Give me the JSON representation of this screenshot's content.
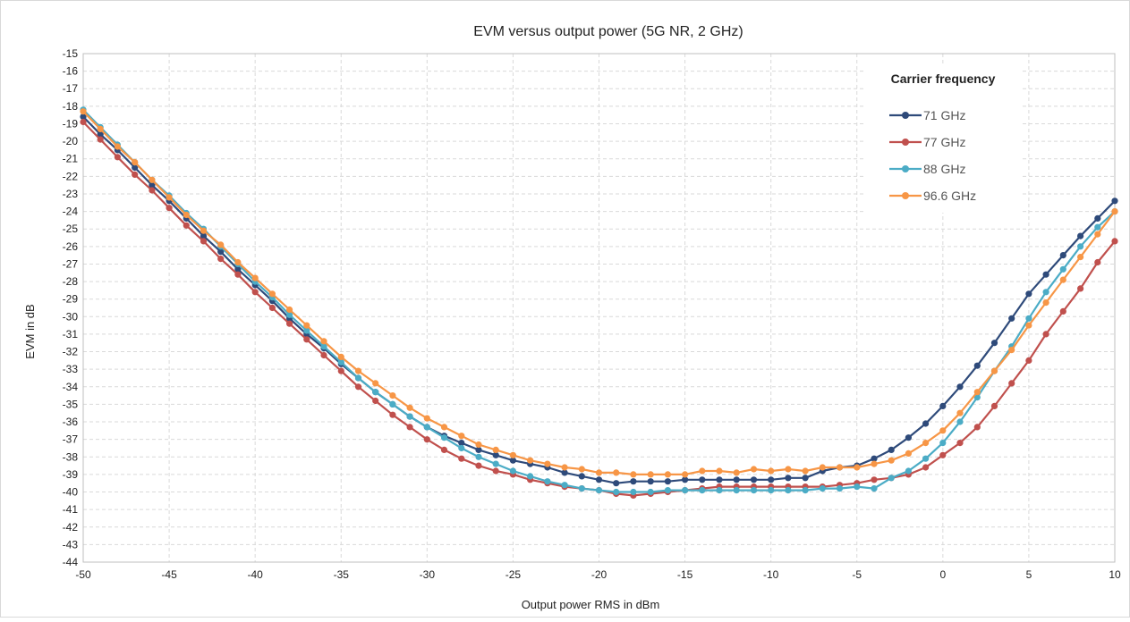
{
  "chart_data": {
    "type": "line",
    "title": "EVM versus output power (5G NR, 2 GHz)",
    "xlabel": "Output power RMS in dBm",
    "ylabel": "EVM in dB",
    "xlim": [
      -50,
      10
    ],
    "ylim": [
      -44,
      -15
    ],
    "x_ticks": [
      -50,
      -45,
      -40,
      -35,
      -30,
      -25,
      -20,
      -15,
      -10,
      -5,
      0,
      5,
      10
    ],
    "y_ticks": [
      -15,
      -16,
      -17,
      -18,
      -19,
      -20,
      -21,
      -22,
      -23,
      -24,
      -25,
      -26,
      -27,
      -28,
      -29,
      -30,
      -31,
      -32,
      -33,
      -34,
      -35,
      -36,
      -37,
      -38,
      -39,
      -40,
      -41,
      -42,
      -43,
      -44
    ],
    "grid": "dashed",
    "legend": {
      "title": "Carrier frequency",
      "position": "top-right"
    },
    "x": [
      -50,
      -49,
      -48,
      -47,
      -46,
      -45,
      -44,
      -43,
      -42,
      -41,
      -40,
      -39,
      -38,
      -37,
      -36,
      -35,
      -34,
      -33,
      -32,
      -31,
      -30,
      -29,
      -28,
      -27,
      -26,
      -25,
      -24,
      -23,
      -22,
      -21,
      -20,
      -19,
      -18,
      -17,
      -16,
      -15,
      -14,
      -13,
      -12,
      -11,
      -10,
      -9,
      -8,
      -7,
      -6,
      -5,
      -4,
      -3,
      -2,
      -1,
      0,
      1,
      2,
      3,
      4,
      5,
      6,
      7,
      8,
      9,
      10
    ],
    "series": [
      {
        "name": "71 GHz",
        "color": "#2e4a7a",
        "values": [
          -18.6,
          -19.6,
          -20.5,
          -21.5,
          -22.5,
          -23.4,
          -24.4,
          -25.4,
          -26.3,
          -27.3,
          -28.2,
          -29.1,
          -30.1,
          -31.0,
          -31.8,
          -32.7,
          -33.5,
          -34.3,
          -35.0,
          -35.7,
          -36.3,
          -36.8,
          -37.2,
          -37.6,
          -37.9,
          -38.2,
          -38.4,
          -38.6,
          -38.9,
          -39.1,
          -39.3,
          -39.5,
          -39.4,
          -39.4,
          -39.4,
          -39.3,
          -39.3,
          -39.3,
          -39.3,
          -39.3,
          -39.3,
          -39.2,
          -39.2,
          -38.8,
          -38.6,
          -38.5,
          -38.1,
          -37.6,
          -36.9,
          -36.1,
          -35.1,
          -34.0,
          -32.8,
          -31.5,
          -30.1,
          -28.7,
          -27.6,
          -26.5,
          -25.4,
          -24.4,
          -23.4
        ]
      },
      {
        "name": "77 GHz",
        "color": "#c0504d",
        "values": [
          -18.9,
          -19.9,
          -20.9,
          -21.9,
          -22.8,
          -23.8,
          -24.8,
          -25.7,
          -26.7,
          -27.6,
          -28.6,
          -29.5,
          -30.4,
          -31.3,
          -32.2,
          -33.1,
          -34.0,
          -34.8,
          -35.6,
          -36.3,
          -37.0,
          -37.6,
          -38.1,
          -38.5,
          -38.8,
          -39.0,
          -39.3,
          -39.5,
          -39.7,
          -39.8,
          -39.9,
          -40.1,
          -40.2,
          -40.1,
          -40.0,
          -39.9,
          -39.8,
          -39.7,
          -39.7,
          -39.7,
          -39.7,
          -39.7,
          -39.7,
          -39.7,
          -39.6,
          -39.5,
          -39.3,
          -39.2,
          -39.0,
          -38.6,
          -37.9,
          -37.2,
          -36.3,
          -35.1,
          -33.8,
          -32.5,
          -31.0,
          -29.7,
          -28.4,
          -26.9,
          -25.7
        ]
      },
      {
        "name": "88 GHz",
        "color": "#4bacc6",
        "values": [
          -18.2,
          -19.2,
          -20.2,
          -21.2,
          -22.2,
          -23.1,
          -24.1,
          -25.0,
          -26.0,
          -27.0,
          -28.0,
          -28.9,
          -29.9,
          -30.8,
          -31.7,
          -32.6,
          -33.5,
          -34.3,
          -35.0,
          -35.7,
          -36.3,
          -36.9,
          -37.5,
          -38.0,
          -38.4,
          -38.8,
          -39.1,
          -39.4,
          -39.6,
          -39.8,
          -39.9,
          -40.0,
          -40.0,
          -40.0,
          -39.9,
          -39.9,
          -39.9,
          -39.9,
          -39.9,
          -39.9,
          -39.9,
          -39.9,
          -39.9,
          -39.8,
          -39.8,
          -39.7,
          -39.8,
          -39.2,
          -38.8,
          -38.1,
          -37.2,
          -36.0,
          -34.6,
          -33.1,
          -31.7,
          -30.1,
          -28.6,
          -27.3,
          -26.0,
          -24.9,
          -24.0
        ]
      },
      {
        "name": "96.6 GHz",
        "color": "#f79646",
        "values": [
          -18.3,
          -19.3,
          -20.3,
          -21.2,
          -22.2,
          -23.2,
          -24.2,
          -25.1,
          -25.9,
          -26.9,
          -27.8,
          -28.7,
          -29.6,
          -30.5,
          -31.4,
          -32.3,
          -33.1,
          -33.8,
          -34.5,
          -35.2,
          -35.8,
          -36.3,
          -36.8,
          -37.3,
          -37.6,
          -37.9,
          -38.2,
          -38.4,
          -38.6,
          -38.7,
          -38.9,
          -38.9,
          -39.0,
          -39.0,
          -39.0,
          -39.0,
          -38.8,
          -38.8,
          -38.9,
          -38.7,
          -38.8,
          -38.7,
          -38.8,
          -38.6,
          -38.6,
          -38.6,
          -38.4,
          -38.2,
          -37.8,
          -37.2,
          -36.5,
          -35.5,
          -34.3,
          -33.1,
          -31.9,
          -30.5,
          -29.2,
          -27.9,
          -26.6,
          -25.3,
          -24.0
        ]
      }
    ]
  }
}
